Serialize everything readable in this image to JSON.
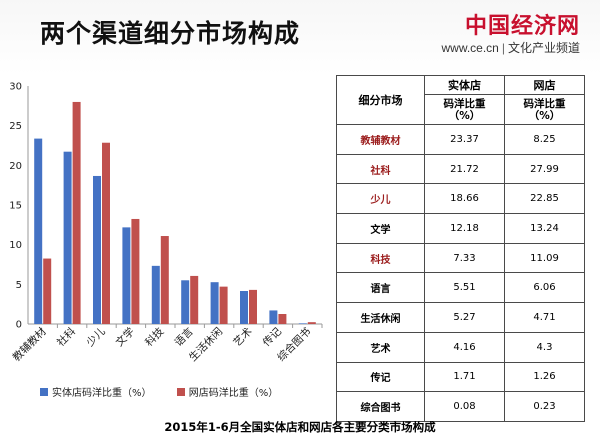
{
  "header": {
    "title": "两个渠道细分市场构成",
    "logo_main": "中国经济网",
    "logo_url": "www.ce.cn",
    "logo_channel": "文化产业频道"
  },
  "colors": {
    "blue": "#4472c4",
    "red": "#c0504d",
    "category_red": "#9b1c1c"
  },
  "chart_data": {
    "type": "bar",
    "title": "",
    "xlabel": "",
    "ylabel": "",
    "ylim": [
      0,
      30
    ],
    "yticks": [
      0,
      5,
      10,
      15,
      20,
      25,
      30
    ],
    "grid": false,
    "legend_position": "bottom",
    "categories": [
      "教辅教材",
      "社科",
      "少儿",
      "文学",
      "科技",
      "语言",
      "生活休闲",
      "艺术",
      "传记",
      "综合图书"
    ],
    "series": [
      {
        "name": "实体店码洋比重（%）",
        "color": "#4472c4",
        "values": [
          23.37,
          21.72,
          18.66,
          12.18,
          7.33,
          5.51,
          5.27,
          4.16,
          1.71,
          0.08
        ]
      },
      {
        "name": "网店码洋比重（%）",
        "color": "#c0504d",
        "values": [
          8.25,
          27.99,
          22.85,
          13.24,
          11.09,
          6.06,
          4.71,
          4.3,
          1.26,
          0.23
        ]
      }
    ]
  },
  "table": {
    "corner_label": "细分市场",
    "col_store": "实体店",
    "col_online": "网店",
    "sub_label_top": "码洋比重",
    "sub_label_unit": "（%）",
    "rows": [
      {
        "category": "教辅教材",
        "store": "23.37",
        "online": "8.25",
        "red": true
      },
      {
        "category": "社科",
        "store": "21.72",
        "online": "27.99",
        "red": true
      },
      {
        "category": "少儿",
        "store": "18.66",
        "online": "22.85",
        "red": true
      },
      {
        "category": "文学",
        "store": "12.18",
        "online": "13.24",
        "red": false
      },
      {
        "category": "科技",
        "store": "7.33",
        "online": "11.09",
        "red": true
      },
      {
        "category": "语言",
        "store": "5.51",
        "online": "6.06",
        "red": false
      },
      {
        "category": "生活休闲",
        "store": "5.27",
        "online": "4.71",
        "red": false
      },
      {
        "category": "艺术",
        "store": "4.16",
        "online": "4.3",
        "red": false
      },
      {
        "category": "传记",
        "store": "1.71",
        "online": "1.26",
        "red": false
      },
      {
        "category": "综合图书",
        "store": "0.08",
        "online": "0.23",
        "red": false
      }
    ]
  },
  "footer": {
    "caption": "2015年1-6月全国实体店和网店各主要分类市场构成"
  }
}
